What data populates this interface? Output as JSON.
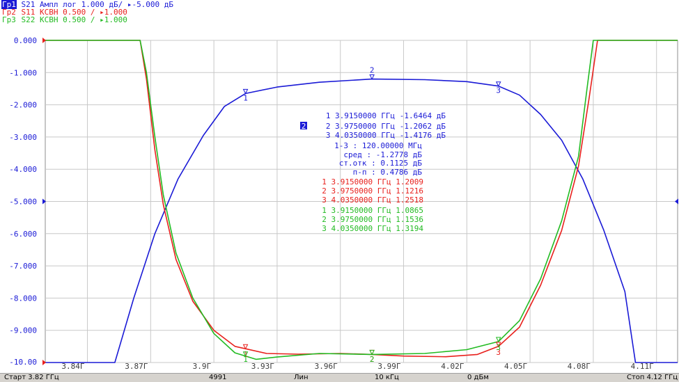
{
  "traces": [
    {
      "tag": "Гр1",
      "text": "S21 Ампл лог 1.000 дБ/ ▸-5.000 дБ",
      "color": "#1a1ad6"
    },
    {
      "tag": "Гр2",
      "text": "S11 КСВН 0.500 / ▸1.000",
      "color": "#e8201c"
    },
    {
      "tag": "Гр3",
      "text": "S22 КСВН 0.500 / ▸1.000",
      "color": "#22bb22"
    }
  ],
  "markers": {
    "blue": [
      "1 3.9150000 ГГц -1.6464 дБ",
      "2 3.9750000 ГГц -1.2062 дБ",
      "3 4.0350000 ГГц -1.4176 дБ"
    ],
    "active_index": "2",
    "stats": [
      "1-3 :  120.00000 МГц",
      "сред : -1.2778 дБ",
      "ст.отк :  0.1125 дБ",
      "п-п :  0.4786 дБ"
    ],
    "red": [
      "1 3.9150000 ГГц  1.2009",
      "2 3.9750000 ГГц  1.1216",
      "3 4.0350000 ГГц  1.2518"
    ],
    "green": [
      "1 3.9150000 ГГц  1.0865",
      "2 3.9750000 ГГц  1.1536",
      "3 4.0350000 ГГц  1.3194"
    ]
  },
  "statusbar": {
    "start": "Старт 3.82 ГГц",
    "points": "4991",
    "sweep": "Лин",
    "ifbw": "10 кГц",
    "power": "0 дБм",
    "stop": "Стоп 4.12 ГГц"
  },
  "colors": {
    "s21": "#1a1ad6",
    "s11": "#e8201c",
    "s22": "#22bb22",
    "grid": "#c8c8c8"
  },
  "chart_data": {
    "type": "line",
    "xlim": [
      3.82,
      4.12
    ],
    "ylim": [
      -10,
      0
    ],
    "grid": true,
    "x_tick_values": [
      3.84,
      3.87,
      3.9,
      3.93,
      3.96,
      3.99,
      4.02,
      4.05,
      4.08,
      4.11
    ],
    "x_tick_labels": [
      "3.84Г",
      "3.87Г",
      "3.9Г",
      "3.93Г",
      "3.96Г",
      "3.99Г",
      "4.02Г",
      "4.05Г",
      "4.08Г",
      "4.11Г"
    ],
    "y_tick_values": [
      0,
      -1,
      -2,
      -3,
      -4,
      -5,
      -6,
      -7,
      -8,
      -9,
      -10
    ],
    "y_tick_labels": [
      "0.000",
      "-1.000",
      "-2.000",
      "-3.000",
      "-4.000",
      "-5.000",
      "-6.000",
      "-7.000",
      "-8.000",
      "-9.000",
      "-10.00"
    ],
    "reference_level": -5,
    "marker_freqs": [
      3.915,
      3.975,
      4.035
    ],
    "series": [
      {
        "name": "S21",
        "color": "#1a1ad6",
        "x": [
          3.82,
          3.853,
          3.862,
          3.872,
          3.883,
          3.895,
          3.905,
          3.915,
          3.93,
          3.95,
          3.975,
          4.0,
          4.02,
          4.035,
          4.045,
          4.055,
          4.065,
          4.075,
          4.085,
          4.095,
          4.1,
          4.12
        ],
        "y": [
          -10,
          -10,
          -8.0,
          -6.0,
          -4.3,
          -2.95,
          -2.05,
          -1.65,
          -1.45,
          -1.3,
          -1.2,
          -1.22,
          -1.28,
          -1.42,
          -1.7,
          -2.3,
          -3.1,
          -4.3,
          -5.9,
          -7.8,
          -10,
          -10
        ]
      },
      {
        "name": "S11",
        "color": "#e8201c",
        "x": [
          3.82,
          3.865,
          3.868,
          3.872,
          3.876,
          3.882,
          3.89,
          3.9,
          3.91,
          3.925,
          3.94,
          3.96,
          3.975,
          3.99,
          4.01,
          4.025,
          4.035,
          4.045,
          4.055,
          4.065,
          4.073,
          4.078,
          4.082,
          4.12
        ],
        "y": [
          0,
          0,
          -1.2,
          -3.4,
          -5.1,
          -6.8,
          -8.1,
          -9.0,
          -9.5,
          -9.72,
          -9.74,
          -9.72,
          -9.75,
          -9.8,
          -9.82,
          -9.75,
          -9.5,
          -8.9,
          -7.6,
          -5.9,
          -3.9,
          -1.8,
          0,
          0
        ]
      },
      {
        "name": "S22",
        "color": "#22bb22",
        "x": [
          3.82,
          3.865,
          3.868,
          3.872,
          3.876,
          3.882,
          3.89,
          3.9,
          3.91,
          3.92,
          3.93,
          3.95,
          3.975,
          4.0,
          4.02,
          4.035,
          4.045,
          4.055,
          4.065,
          4.073,
          4.077,
          4.08,
          4.12
        ],
        "y": [
          0,
          0,
          -1.0,
          -3.0,
          -4.8,
          -6.6,
          -8.0,
          -9.1,
          -9.7,
          -9.9,
          -9.83,
          -9.72,
          -9.75,
          -9.72,
          -9.6,
          -9.35,
          -8.7,
          -7.4,
          -5.6,
          -3.6,
          -1.5,
          0,
          0
        ]
      }
    ]
  }
}
